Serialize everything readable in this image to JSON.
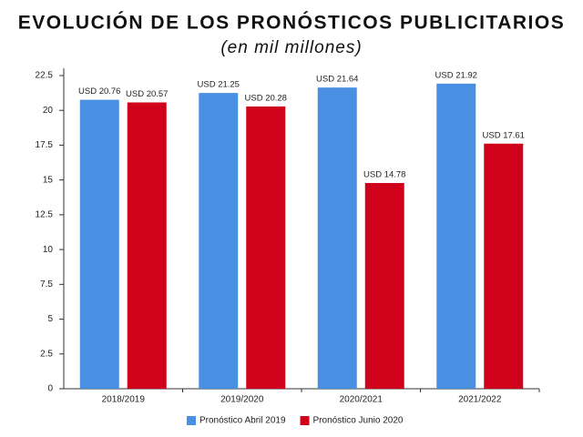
{
  "chart_data": {
    "type": "bar",
    "title": "EVOLUCIÓN DE LOS PRONÓSTICOS PUBLICITARIOS",
    "subtitle": "(en mil millones)",
    "categories": [
      "2018/2019",
      "2019/2020",
      "2020/2021",
      "2021/2022"
    ],
    "series": [
      {
        "name": "Pronóstico Abril 2019",
        "color": "#4a90e2",
        "values": [
          20.76,
          21.25,
          21.64,
          21.92
        ],
        "value_labels": [
          "USD 20.76",
          "USD 21.25",
          "USD 21.64",
          "USD 21.92"
        ]
      },
      {
        "name": "Pronóstico Junio 2020",
        "color": "#d0021b",
        "values": [
          20.57,
          20.28,
          14.78,
          17.61
        ],
        "value_labels": [
          "USD 20.57",
          "USD 20.28",
          "USD 14.78",
          "USD 17.61"
        ]
      }
    ],
    "ylim": [
      0,
      22.5
    ],
    "yticks": [
      0,
      2.5,
      5,
      7.5,
      10,
      12.5,
      15,
      17.5,
      20,
      22.5
    ],
    "legend": "bottom"
  }
}
